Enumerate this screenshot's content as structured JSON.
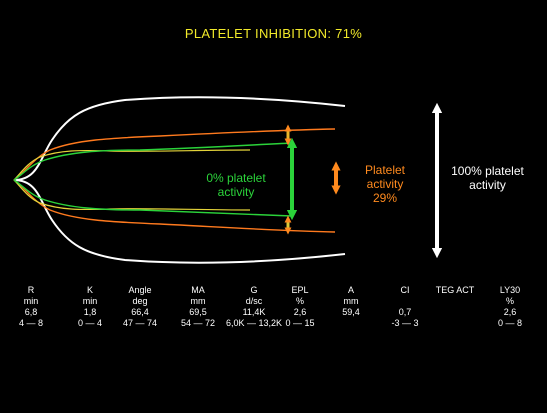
{
  "title": "PLATELET INHIBITION: 71%",
  "labels": {
    "zero_line1": "0% platelet",
    "zero_line2": "activity",
    "plt_line1": "Platelet",
    "plt_line2": "activity",
    "plt_line3": "29%",
    "full_line1": "100% platelet",
    "full_line2": "activity"
  },
  "colors": {
    "background": "#000000",
    "title": "#f2ea2a",
    "green": "#2bd33a",
    "orange": "#ff8a1e",
    "yellow": "#f2ea2a",
    "white": "#ffffff"
  },
  "params": [
    {
      "name": "R",
      "unit": "min",
      "value": "6,8",
      "range": "4 — 8"
    },
    {
      "name": "K",
      "unit": "min",
      "value": "1,8",
      "range": "0 — 4"
    },
    {
      "name": "Angle",
      "unit": "deg",
      "value": "66,4",
      "range": "47 — 74"
    },
    {
      "name": "MA",
      "unit": "mm",
      "value": "69,5",
      "range": "54 — 72"
    },
    {
      "name": "G",
      "unit": "d/sc",
      "value": "11,4K",
      "range": "6,0K — 13,2K"
    },
    {
      "name": "EPL",
      "unit": "%",
      "value": "2,6",
      "range": "0 — 15"
    },
    {
      "name": "A",
      "unit": "mm",
      "value": "59,4",
      "range": ""
    },
    {
      "name": "CI",
      "unit": "",
      "value": "0,7",
      "range": "-3 — 3"
    },
    {
      "name": "TEG ACT",
      "unit": "",
      "value": "",
      "range": ""
    },
    {
      "name": "LY30",
      "unit": "%",
      "value": "2,6",
      "range": "0 — 8"
    }
  ]
}
